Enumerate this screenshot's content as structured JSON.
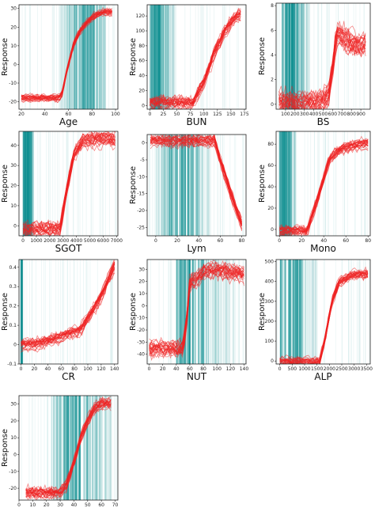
{
  "chart_data": [
    {
      "type": "line",
      "xlabel": "Age",
      "ylabel": "Response",
      "xlim": [
        18,
        102
      ],
      "ylim": [
        -24,
        32
      ],
      "xticks": [
        20,
        40,
        60,
        80,
        100
      ],
      "yticks": [
        -20,
        -10,
        0,
        10,
        20,
        30
      ],
      "rug": {
        "range": [
          52,
          92
        ],
        "peak": 75
      },
      "series": [
        {
          "x": [
            20,
            45,
            52,
            55,
            58,
            62,
            65,
            70,
            75,
            80,
            85,
            90,
            97
          ],
          "values": [
            -18,
            -18,
            -18,
            -15,
            -5,
            5,
            12,
            18,
            22,
            25,
            27,
            28,
            28
          ]
        }
      ],
      "spread": 3
    },
    {
      "type": "line",
      "xlabel": "BUN",
      "ylabel": "Response",
      "xlim": [
        -5,
        178
      ],
      "ylim": [
        -5,
        135
      ],
      "xticks": [
        0,
        25,
        50,
        75,
        100,
        125,
        150,
        175
      ],
      "yticks": [
        0,
        20,
        40,
        60,
        80,
        100,
        120
      ],
      "rug": {
        "range": [
          0,
          45
        ],
        "peak": 15
      },
      "series": [
        {
          "x": [
            0,
            40,
            80,
            100,
            120,
            140,
            160,
            168
          ],
          "values": [
            2,
            2,
            2,
            30,
            70,
            100,
            118,
            120
          ]
        }
      ],
      "spread": 15
    },
    {
      "type": "line",
      "xlabel": "BS",
      "ylabel": "Response",
      "xlim": [
        0,
        1000
      ],
      "ylim": [
        -0.4,
        8.2
      ],
      "xticks": [
        100,
        200,
        300,
        400,
        500,
        600,
        700,
        800,
        900
      ],
      "yticks": [
        0,
        2,
        4,
        6,
        8
      ],
      "rug": {
        "range": [
          60,
          360
        ],
        "peak": 170
      },
      "series": [
        {
          "x": [
            30,
            400,
            500,
            560,
            600,
            630,
            660,
            700,
            800,
            900,
            950
          ],
          "values": [
            0.2,
            0.2,
            0.3,
            1,
            3,
            5,
            6,
            5.5,
            5,
            4.8,
            5
          ]
        }
      ],
      "spread": 1.5
    },
    {
      "type": "line",
      "xlabel": "SGOT",
      "ylabel": "Response",
      "xlim": [
        -300,
        7100
      ],
      "ylim": [
        -5,
        47
      ],
      "xticks": [
        0,
        1000,
        2000,
        3000,
        4000,
        5000,
        6000,
        7000
      ],
      "yticks": [
        0,
        10,
        20,
        30,
        40
      ],
      "rug": {
        "range": [
          0,
          800
        ],
        "peak": 300
      },
      "series": [
        {
          "x": [
            0,
            1500,
            2800,
            3200,
            3800,
            4500,
            5500,
            6500,
            6900
          ],
          "values": [
            -2,
            -2,
            -2,
            15,
            35,
            42,
            43,
            43,
            42
          ]
        }
      ],
      "spread": 6
    },
    {
      "type": "line",
      "xlabel": "Lym",
      "ylabel": "Response",
      "xlim": [
        -8,
        84
      ],
      "ylim": [
        -27.5,
        2.5
      ],
      "xticks": [
        0,
        20,
        40,
        60,
        80
      ],
      "yticks": [
        0,
        -5,
        -10,
        -15,
        -20,
        -25
      ],
      "rug": {
        "range": [
          0,
          52
        ],
        "peak": 25
      },
      "series": [
        {
          "x": [
            -5,
            20,
            40,
            55,
            60,
            70,
            80
          ],
          "values": [
            0.8,
            0.8,
            0.8,
            0.8,
            -5,
            -15,
            -24
          ]
        }
      ],
      "spread": 3
    },
    {
      "type": "line",
      "xlabel": "Mono",
      "ylabel": "Response",
      "xlim": [
        -3,
        82
      ],
      "ylim": [
        -6,
        92
      ],
      "xticks": [
        0,
        20,
        40,
        60,
        80
      ],
      "yticks": [
        0,
        20,
        40,
        60,
        80
      ],
      "rug": {
        "range": [
          0,
          15
        ],
        "peak": 5
      },
      "series": [
        {
          "x": [
            0,
            15,
            25,
            35,
            45,
            55,
            65,
            75,
            80
          ],
          "values": [
            -2,
            -2,
            -2,
            30,
            65,
            75,
            78,
            80,
            80
          ]
        }
      ],
      "spread": 8
    },
    {
      "type": "line",
      "xlabel": "CR",
      "ylabel": "Response",
      "xlim": [
        -3,
        145
      ],
      "ylim": [
        -0.1,
        0.44
      ],
      "xticks": [
        0,
        20,
        40,
        60,
        80,
        100,
        120,
        140
      ],
      "yticks": [
        -0.1,
        0,
        0.1,
        0.2,
        0.3,
        0.4
      ],
      "rug": {
        "range": [
          0,
          2
        ],
        "peak": 1
      },
      "series": [
        {
          "x": [
            0,
            20,
            50,
            90,
            120,
            140
          ],
          "values": [
            0,
            0,
            0.03,
            0.08,
            0.25,
            0.41
          ]
        }
      ],
      "spread": 0.05
    },
    {
      "type": "line",
      "xlabel": "NUT",
      "ylabel": "Response",
      "xlim": [
        -3,
        143
      ],
      "ylim": [
        -48,
        38
      ],
      "xticks": [
        0,
        20,
        40,
        60,
        80,
        100,
        120,
        140
      ],
      "yticks": [
        30,
        20,
        10,
        0,
        -10,
        -20,
        -30,
        -40
      ],
      "rug": {
        "range": [
          40,
          135
        ],
        "peak": 60
      },
      "series": [
        {
          "x": [
            0,
            30,
            50,
            55,
            60,
            70,
            80,
            100,
            120,
            140
          ],
          "values": [
            -35,
            -35,
            -35,
            -15,
            20,
            22,
            28,
            30,
            28,
            27
          ]
        }
      ],
      "spread": 12
    },
    {
      "type": "line",
      "xlabel": "ALP",
      "ylabel": "Response",
      "xlim": [
        -150,
        3650
      ],
      "ylim": [
        -15,
        510
      ],
      "xticks": [
        0,
        500,
        1000,
        1500,
        2000,
        2500,
        3000,
        3500
      ],
      "yticks": [
        0,
        100,
        200,
        300,
        400,
        500
      ],
      "rug": {
        "range": [
          0,
          1500
        ],
        "peak": 400
      },
      "series": [
        {
          "x": [
            0,
            1000,
            1600,
            1800,
            2100,
            2400,
            2800,
            3200,
            3550
          ],
          "values": [
            0,
            0,
            0,
            100,
            300,
            400,
            430,
            440,
            440
          ]
        }
      ],
      "spread": 40
    },
    {
      "type": "line",
      "xlabel": "HCT",
      "ylabel": "Response",
      "xlim": [
        0,
        72
      ],
      "ylim": [
        -27,
        35
      ],
      "xticks": [
        0,
        10,
        20,
        30,
        40,
        50,
        60,
        70
      ],
      "yticks": [
        -20,
        -10,
        0,
        10,
        20,
        30
      ],
      "rug": {
        "range": [
          20,
          68
        ],
        "peak": 42
      },
      "series": [
        {
          "x": [
            5,
            20,
            30,
            35,
            40,
            45,
            50,
            55,
            60,
            67
          ],
          "values": [
            -23,
            -23,
            -23,
            -18,
            -5,
            10,
            20,
            27,
            30,
            30
          ]
        }
      ],
      "spread": 6
    }
  ]
}
